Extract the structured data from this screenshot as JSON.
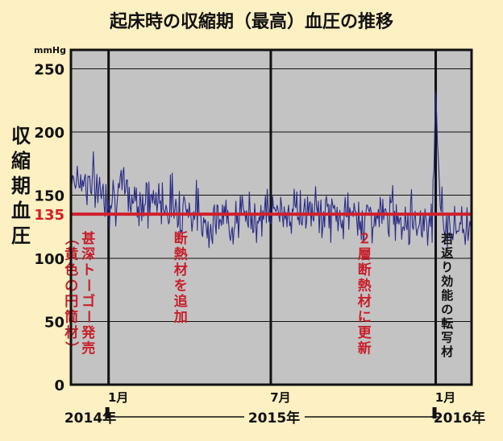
{
  "chart_data": {
    "type": "line",
    "title": "起床時の収縮期（最高）血圧の推移",
    "unit": "mmHg",
    "ylabel_chars": [
      "収",
      "縮",
      "期",
      "血",
      "圧"
    ],
    "ylim": [
      0,
      265
    ],
    "yticks": [
      0,
      50,
      100,
      150,
      200,
      250
    ],
    "grid": true,
    "reference_line": {
      "value": 135,
      "label": "135",
      "color": "#d0202c"
    },
    "x_domain": [
      "2014-11-20",
      "2016-02-10"
    ],
    "period_dividers": [
      "2015-01-01",
      "2015-07-01",
      "2016-01-01"
    ],
    "month_labels": [
      {
        "date": "2015-01-01",
        "label": "1月"
      },
      {
        "date": "2015-07-01",
        "label": "7月"
      },
      {
        "date": "2016-01-01",
        "label": "1月"
      }
    ],
    "year_labels": [
      "2014年",
      "2015年",
      "2016年"
    ],
    "annotations": [
      {
        "date": "2014-11-27",
        "lines": [
          "甚深トーゴー発売",
          "（黄色の円筒材）"
        ],
        "color": "#c81e2a"
      },
      {
        "date": "2015-03-10",
        "lines": [
          "断熱材を追加"
        ],
        "color": "#c81e2a"
      },
      {
        "date": "2015-10-01",
        "lines": [
          "２層断熱材に更新"
        ],
        "color": "#c81e2a"
      },
      {
        "date": "2016-01-03",
        "lines": [
          "若返り効能の転写材"
        ],
        "color": "#111111"
      }
    ],
    "series": [
      {
        "line_color": "#2b2b88",
        "x": [
          "2014-11-20",
          "2014-12-01",
          "2014-12-10",
          "2014-12-20",
          "2015-01-01",
          "2015-01-15",
          "2015-02-01",
          "2015-02-15",
          "2015-03-01",
          "2015-03-15",
          "2015-04-01",
          "2015-04-10",
          "2015-04-20",
          "2015-05-01",
          "2015-05-15",
          "2015-06-01",
          "2015-06-15",
          "2015-07-01",
          "2015-07-15",
          "2015-08-01",
          "2015-08-15",
          "2015-09-01",
          "2015-09-15",
          "2015-10-01",
          "2015-10-15",
          "2015-11-01",
          "2015-11-15",
          "2015-12-01",
          "2015-12-15",
          "2015-12-28",
          "2016-01-01",
          "2016-01-03",
          "2016-01-06",
          "2016-01-10",
          "2016-01-20",
          "2016-02-01",
          "2016-02-10"
        ],
        "y": [
          165,
          163,
          160,
          156,
          150,
          152,
          148,
          145,
          146,
          143,
          140,
          135,
          128,
          130,
          131,
          133,
          134,
          136,
          137,
          138,
          136,
          135,
          133,
          134,
          132,
          133,
          135,
          132,
          130,
          128,
          232,
          198,
          145,
          128,
          124,
          126,
          128
        ],
        "noise": [
          10,
          10,
          10,
          11,
          11,
          11,
          10,
          10,
          11,
          11,
          11,
          11,
          10,
          10,
          9,
          10,
          10,
          9,
          9,
          9,
          9,
          9,
          9,
          9,
          9,
          9,
          10,
          10,
          10,
          10,
          0,
          4,
          9,
          9,
          9,
          9,
          9
        ]
      }
    ]
  }
}
